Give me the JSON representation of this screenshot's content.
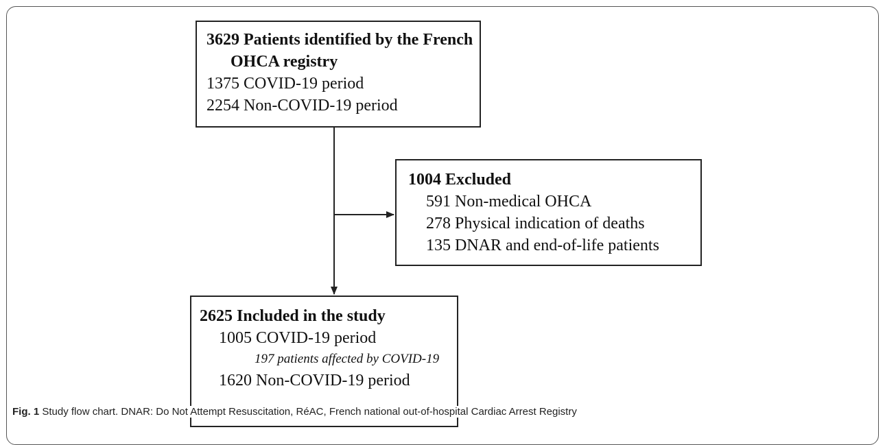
{
  "nodes": [
    {
      "title": "3629 Patients identified by the French OHCA registry",
      "items": [
        "1375 COVID-19 period",
        "2254 Non-COVID-19 period"
      ]
    },
    {
      "title": "1004 Excluded",
      "items": [
        "591 Non-medical OHCA",
        "278 Physical indication of deaths",
        "135 DNAR and end-of-life patients"
      ]
    },
    {
      "title": "2625 Included in the study",
      "items": [
        "1005 COVID-19 period",
        "197 patients affected by COVID-19",
        "1620 Non-COVID-19 period"
      ]
    }
  ],
  "caption": {
    "label": "Fig. 1",
    "text": "Study flow chart. DNAR: Do Not Attempt Resuscitation, RéAC, French national out-of-hospital Cardiac Arrest Registry"
  }
}
